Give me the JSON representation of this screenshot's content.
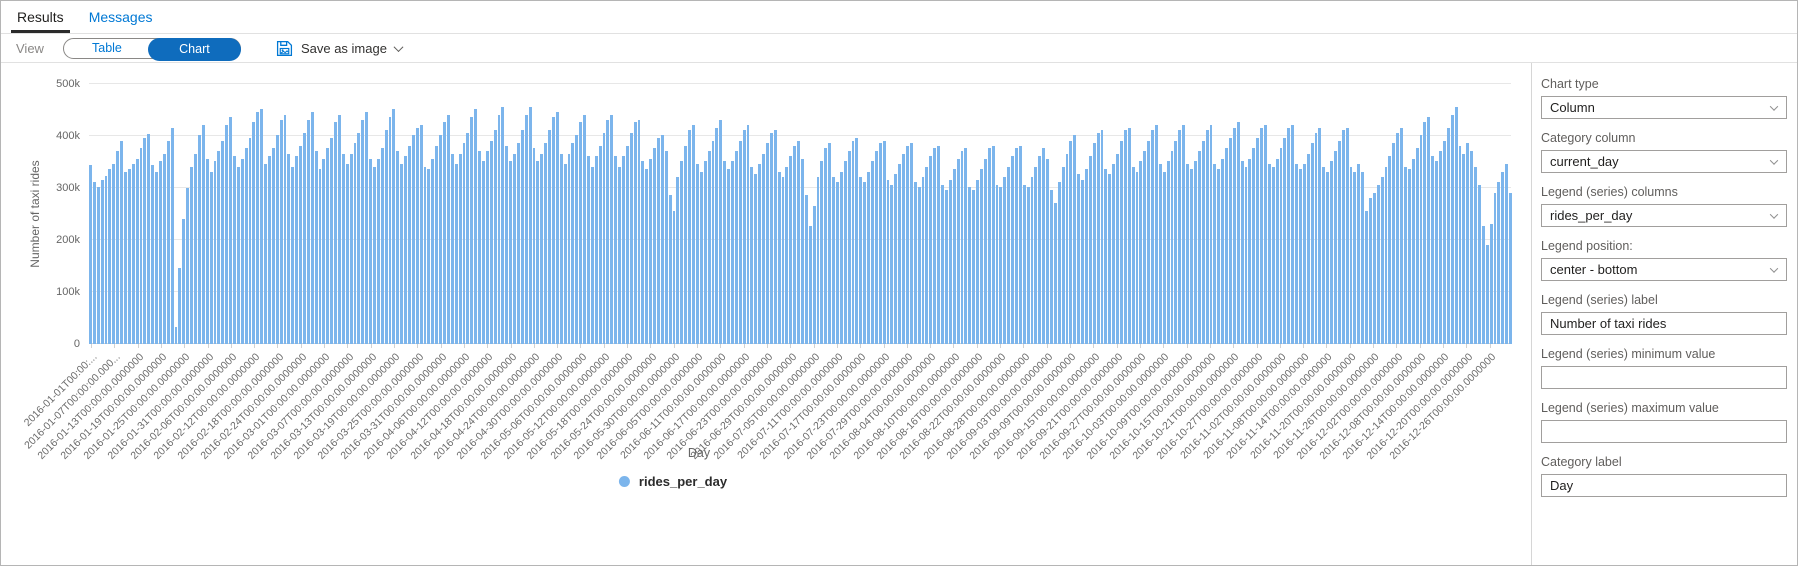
{
  "tabs": {
    "results": "Results",
    "messages": "Messages"
  },
  "toolbar": {
    "view_label": "View",
    "table_label": "Table",
    "chart_label": "Chart",
    "save_as_image_label": "Save as image"
  },
  "legend": {
    "label": "rides_per_day",
    "marker_color": "#7cb5ec"
  },
  "panel": {
    "fields": [
      {
        "label": "Chart type",
        "type": "select",
        "value": "Column"
      },
      {
        "label": "Category column",
        "type": "select",
        "value": "current_day"
      },
      {
        "label": "Legend (series) columns",
        "type": "select",
        "value": "rides_per_day"
      },
      {
        "label": "Legend position:",
        "type": "select",
        "value": "center - bottom"
      },
      {
        "label": "Legend (series) label",
        "type": "input",
        "value": "Number of taxi rides"
      },
      {
        "label": "Legend (series) minimum value",
        "type": "input",
        "value": ""
      },
      {
        "label": "Legend (series) maximum value",
        "type": "input",
        "value": ""
      },
      {
        "label": "Category label",
        "type": "input",
        "value": "Day"
      }
    ]
  },
  "colors": {
    "accent_blue": "#0078d4",
    "chart_toggle_blue": "#0f6cbd",
    "bar_blue": "#7cb5ec"
  },
  "chart_data": {
    "type": "bar",
    "title": "",
    "xlabel": "Day",
    "ylabel": "Number of taxi rides",
    "series_name": "rides_per_day",
    "x_start": "2016-01-01",
    "x_end": "2016-12-31",
    "x_step_days": 1,
    "x_tick_every_days": 6,
    "ylim_k": [
      0,
      500
    ],
    "y_unit": "thousands of rides (k)",
    "grid": true,
    "legend_position": "center - bottom",
    "y_ticks": [
      {
        "label": "500k",
        "value_k": 500
      },
      {
        "label": "400k",
        "value_k": 400
      },
      {
        "label": "300k",
        "value_k": 300
      },
      {
        "label": "200k",
        "value_k": 200
      },
      {
        "label": "100k",
        "value_k": 100
      },
      {
        "label": "0",
        "value_k": 0
      }
    ],
    "values_k": [
      345,
      311,
      302,
      316,
      324,
      336,
      346,
      372,
      391,
      330,
      336,
      346,
      356,
      376,
      396,
      404,
      344,
      331,
      352,
      366,
      391,
      416,
      32,
      146,
      241,
      300,
      341,
      366,
      401,
      421,
      356,
      331,
      351,
      371,
      391,
      421,
      436,
      361,
      341,
      356,
      376,
      396,
      426,
      446,
      451,
      346,
      361,
      376,
      401,
      431,
      441,
      366,
      341,
      361,
      381,
      406,
      431,
      446,
      371,
      336,
      356,
      376,
      396,
      426,
      441,
      366,
      346,
      366,
      386,
      406,
      431,
      446,
      356,
      341,
      356,
      376,
      411,
      436,
      451,
      371,
      346,
      361,
      381,
      401,
      416,
      421,
      341,
      336,
      356,
      381,
      401,
      426,
      441,
      366,
      346,
      366,
      386,
      406,
      436,
      451,
      371,
      351,
      371,
      391,
      411,
      441,
      456,
      381,
      351,
      366,
      386,
      411,
      441,
      456,
      376,
      351,
      366,
      386,
      411,
      436,
      446,
      366,
      346,
      366,
      386,
      401,
      426,
      441,
      361,
      341,
      361,
      381,
      406,
      431,
      441,
      361,
      341,
      361,
      381,
      406,
      426,
      431,
      351,
      336,
      356,
      376,
      396,
      401,
      371,
      286,
      256,
      321,
      351,
      381,
      411,
      421,
      346,
      331,
      351,
      371,
      391,
      416,
      431,
      351,
      336,
      351,
      371,
      391,
      411,
      421,
      341,
      326,
      346,
      366,
      386,
      406,
      411,
      331,
      321,
      341,
      361,
      381,
      391,
      356,
      286,
      226,
      266,
      321,
      351,
      376,
      386,
      321,
      311,
      331,
      351,
      371,
      391,
      396,
      321,
      311,
      331,
      351,
      371,
      386,
      391,
      316,
      306,
      326,
      346,
      366,
      381,
      386,
      311,
      301,
      321,
      341,
      361,
      376,
      381,
      306,
      296,
      316,
      336,
      356,
      371,
      376,
      301,
      296,
      316,
      336,
      356,
      376,
      381,
      306,
      301,
      321,
      341,
      361,
      376,
      381,
      306,
      301,
      321,
      341,
      361,
      376,
      356,
      296,
      271,
      311,
      341,
      366,
      391,
      401,
      326,
      316,
      336,
      361,
      386,
      406,
      411,
      336,
      326,
      346,
      366,
      391,
      411,
      416,
      341,
      331,
      351,
      371,
      391,
      411,
      421,
      346,
      331,
      351,
      371,
      391,
      411,
      421,
      346,
      336,
      351,
      371,
      391,
      411,
      421,
      346,
      336,
      356,
      376,
      396,
      416,
      426,
      351,
      341,
      356,
      376,
      396,
      416,
      421,
      346,
      341,
      356,
      376,
      396,
      416,
      421,
      346,
      336,
      346,
      366,
      386,
      406,
      416,
      341,
      331,
      351,
      371,
      391,
      411,
      416,
      341,
      331,
      346,
      331,
      256,
      281,
      291,
      306,
      321,
      341,
      361,
      386,
      406,
      416,
      341,
      336,
      356,
      376,
      401,
      426,
      436,
      361,
      351,
      371,
      391,
      416,
      441,
      456,
      381,
      366,
      386,
      371,
      341,
      306,
      226,
      191,
      231,
      291,
      311,
      331,
      346,
      291
    ],
    "tick_labels": [
      "2016-01-01T00:00:...",
      "2016-01-07T00:00:00.000...",
      "2016-01-13T00:00:00.0000000",
      "2016-01-19T00:00:00.0000000",
      "2016-01-25T00:00:00.0000000",
      "2016-01-31T00:00:00.0000000",
      "2016-02-06T00:00:00.0000000",
      "2016-02-12T00:00:00.0000000",
      "2016-02-18T00:00:00.0000000",
      "2016-02-24T00:00:00.0000000",
      "2016-03-01T00:00:00.0000000",
      "2016-03-07T00:00:00.0000000",
      "2016-03-13T00:00:00.0000000",
      "2016-03-19T00:00:00.0000000",
      "2016-03-25T00:00:00.0000000",
      "2016-03-31T00:00:00.0000000",
      "2016-04-06T00:00:00.0000000",
      "2016-04-12T00:00:00.0000000",
      "2016-04-18T00:00:00.0000000",
      "2016-04-24T00:00:00.0000000",
      "2016-04-30T00:00:00.0000000",
      "2016-05-06T00:00:00.0000000",
      "2016-05-12T00:00:00.0000000",
      "2016-05-18T00:00:00.0000000",
      "2016-05-24T00:00:00.0000000",
      "2016-05-30T00:00:00.0000000",
      "2016-06-05T00:00:00.0000000",
      "2016-06-11T00:00:00.0000000",
      "2016-06-17T00:00:00.0000000",
      "2016-06-23T00:00:00.0000000",
      "2016-06-29T00:00:00.0000000",
      "2016-07-05T00:00:00.0000000",
      "2016-07-11T00:00:00.0000000",
      "2016-07-17T00:00:00.0000000",
      "2016-07-23T00:00:00.0000000",
      "2016-07-29T00:00:00.0000000",
      "2016-08-04T00:00:00.0000000",
      "2016-08-10T00:00:00.0000000",
      "2016-08-16T00:00:00.0000000",
      "2016-08-22T00:00:00.0000000",
      "2016-08-28T00:00:00.0000000",
      "2016-09-03T00:00:00.0000000",
      "2016-09-09T00:00:00.0000000",
      "2016-09-15T00:00:00.0000000",
      "2016-09-21T00:00:00.0000000",
      "2016-09-27T00:00:00.0000000",
      "2016-10-03T00:00:00.0000000",
      "2016-10-09T00:00:00.0000000",
      "2016-10-15T00:00:00.0000000",
      "2016-10-21T00:00:00.0000000",
      "2016-10-27T00:00:00.0000000",
      "2016-11-02T00:00:00.0000000",
      "2016-11-08T00:00:00.0000000",
      "2016-11-14T00:00:00.0000000",
      "2016-11-20T00:00:00.0000000",
      "2016-11-26T00:00:00.0000000",
      "2016-12-02T00:00:00.0000000",
      "2016-12-08T00:00:00.0000000",
      "2016-12-14T00:00:00.0000000",
      "2016-12-20T00:00:00.0000000",
      "2016-12-26T00:00:00.0000000"
    ]
  }
}
